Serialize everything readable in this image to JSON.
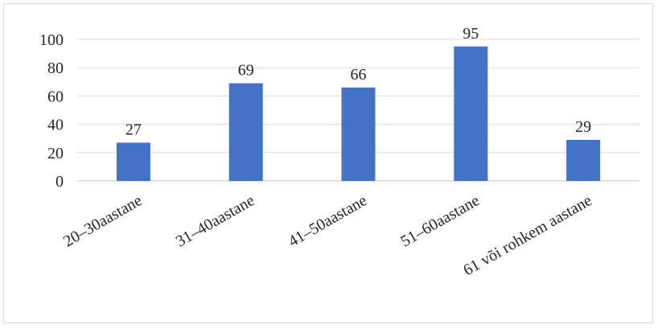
{
  "chart_data": {
    "type": "bar",
    "categories": [
      "20–30aastane",
      "31–40aastane",
      "41–50aastane",
      "51–60aastane",
      "61 või rohkem aastane"
    ],
    "values": [
      27,
      69,
      66,
      95,
      29
    ],
    "data_labels": [
      "27",
      "69",
      "66",
      "95",
      "29"
    ],
    "ylim": [
      0,
      100
    ],
    "yticks": [
      0,
      20,
      40,
      60,
      80,
      100
    ],
    "bar_color": "#4472c4",
    "grid": true,
    "legend": "none",
    "title": "",
    "xlabel": "",
    "ylabel": ""
  }
}
